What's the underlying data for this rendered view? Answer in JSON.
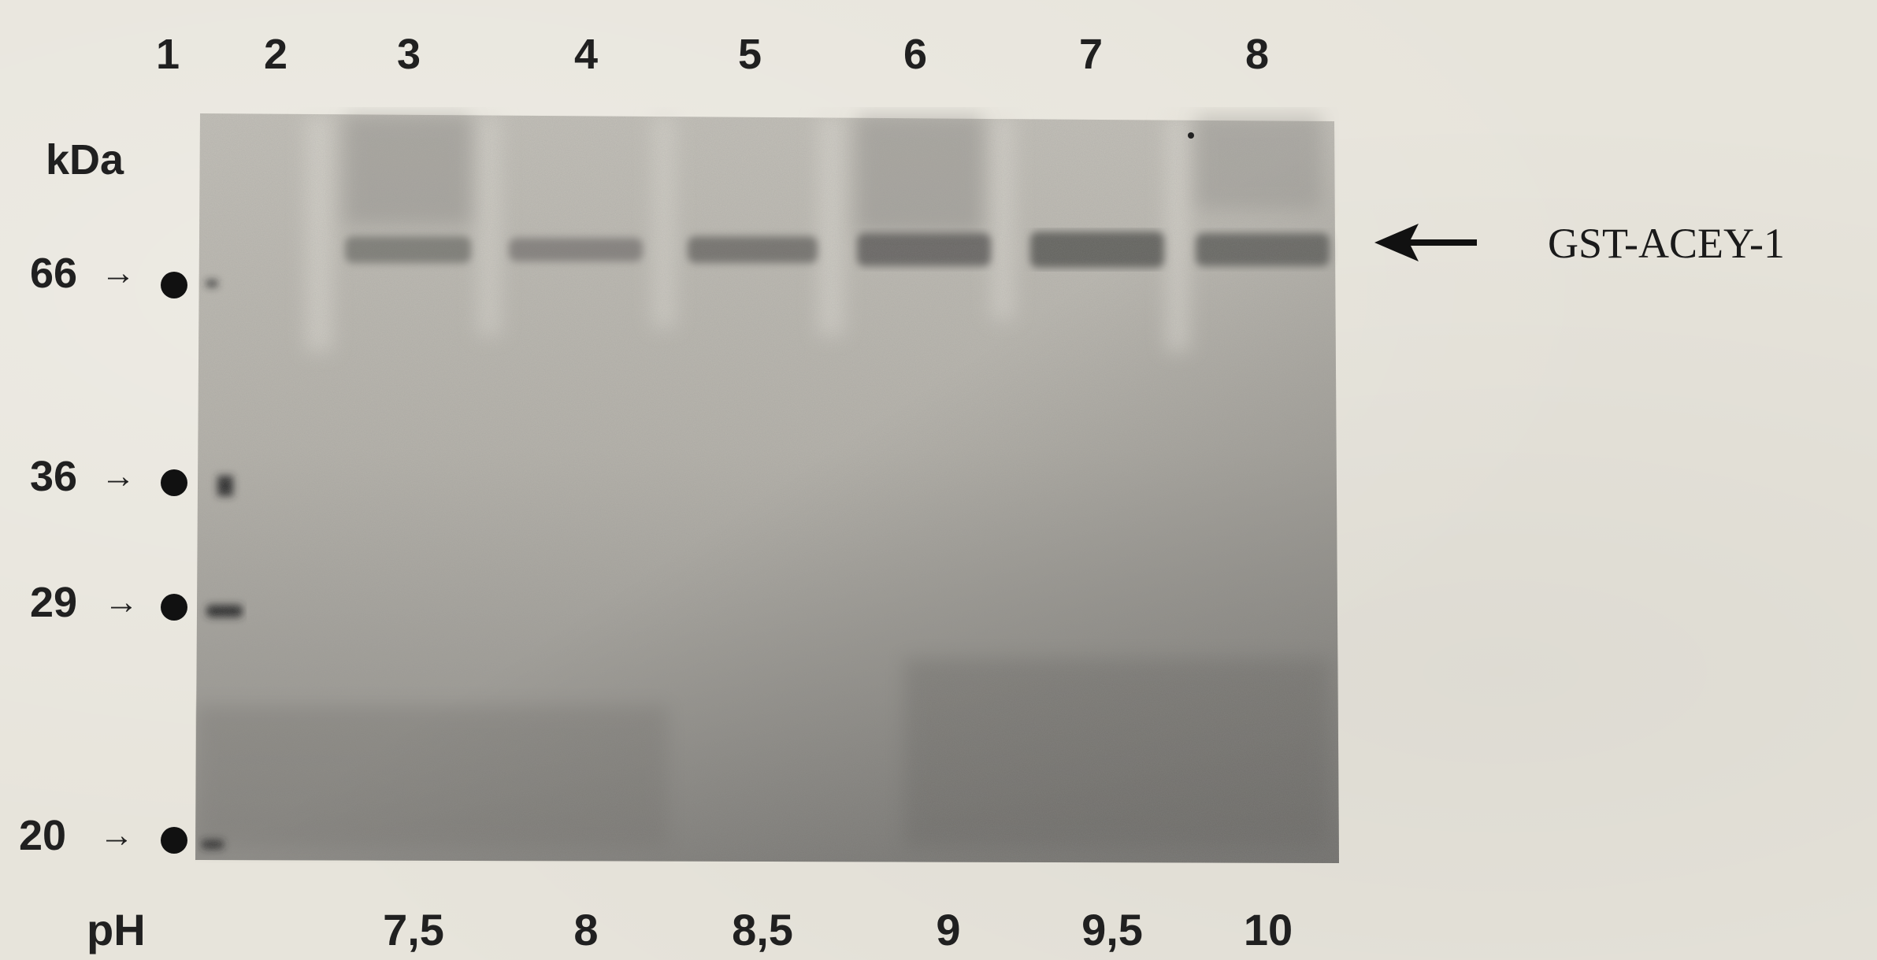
{
  "lanes": [
    "1",
    "2",
    "3",
    "4",
    "5",
    "6",
    "7",
    "8"
  ],
  "kda_label": "kDa",
  "markers": [
    "66",
    "36",
    "29",
    "20"
  ],
  "ph_label": "pH",
  "ph_values": [
    "7,5",
    "8",
    "8,5",
    "9",
    "9,5",
    "10"
  ],
  "band_label": "GST-ACEY-1",
  "colors": {
    "gel_light": "#bdbab2",
    "gel_dark": "#8c8a85",
    "band": "#5d5b58",
    "ink": "#202020"
  }
}
